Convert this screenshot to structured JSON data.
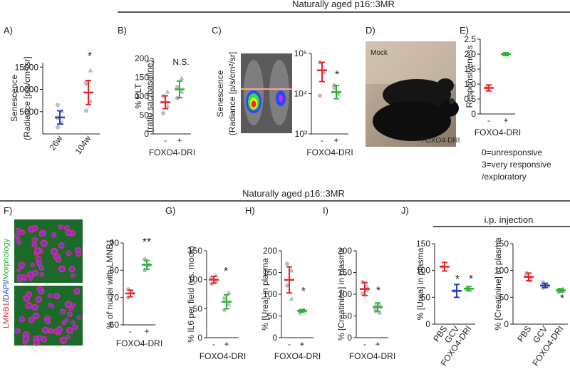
{
  "colors": {
    "red": "#e8242a",
    "blue": "#1f3fc6",
    "green": "#29b233",
    "grey": "#bdbdbd",
    "black": "#222222"
  },
  "headers": {
    "top": "Naturally aged p16::3MR",
    "middle": "Naturally aged p16::3MR",
    "ip": "i.p. injection"
  },
  "panel_letters": {
    "A": "A)",
    "B": "B)",
    "C": "C)",
    "D": "D)",
    "E": "E)",
    "F": "F)",
    "G": "G)",
    "H": "H)",
    "I": "I)",
    "J": "J)"
  },
  "annotations": {
    "star": "*",
    "double_star": "**",
    "ns": "N.S."
  },
  "photo_labels": {
    "mock": "Mock",
    "foxo4": "FOXO4-DRI"
  },
  "micro_label": {
    "lmnb1": "LMNB1",
    "dapi": "DAPI",
    "morph": "Morphology"
  },
  "legend_E": [
    "0=unresponsive",
    "3=very responsive",
    "/exploratory"
  ],
  "chart_data": [
    {
      "id": "A",
      "type": "scatter",
      "title": "",
      "ylabel": [
        "Senescence",
        "(Radiance [p/s/cm²/sr]"
      ],
      "xlabel": "",
      "categories": [
        "26w",
        "104w"
      ],
      "ylim": [
        0,
        16000
      ],
      "ticks": [
        5000,
        10000,
        15000
      ],
      "series": [
        {
          "values": [
            3700,
            9300
          ]
        }
      ],
      "errors": [
        1500,
        2700
      ],
      "raw": [
        [
          1500,
          2500,
          3600,
          5200,
          6500
        ],
        [
          5200,
          7400,
          11600,
          14300,
          11300
        ]
      ]
    },
    {
      "id": "B",
      "type": "scatter",
      "ylabel": [
        "% PLT",
        "(ratio sac/baseline)"
      ],
      "xlabel": "FOXO4-DRI",
      "categories": [
        "-",
        "+"
      ],
      "ylim": [
        0,
        200
      ],
      "ticks": [
        0,
        50,
        100,
        150,
        200
      ],
      "series": [
        {
          "values": [
            84,
            118
          ]
        }
      ],
      "errors": [
        17,
        22
      ],
      "raw": [
        [
          55,
          75,
          100,
          112
        ],
        [
          95,
          112,
          124,
          148
        ]
      ]
    },
    {
      "id": "C",
      "type": "scatter",
      "ylabel": [
        "Senescence",
        "(Radiance [p/s/cm²/sr]"
      ],
      "xlabel": "FOXO4-DRI",
      "categories": [
        "-",
        "+"
      ],
      "log": true,
      "ylim": [
        1000,
        100000
      ],
      "tick_labels": [
        "10³",
        "10⁴",
        "10⁵"
      ],
      "series": [
        {
          "values": [
            38000,
            11000
          ]
        }
      ],
      "errors_log": [
        [
          20000,
          60000
        ],
        [
          7500,
          16000
        ]
      ],
      "raw": [
        [
          60000,
          35000,
          9000
        ],
        [
          16000,
          10000,
          14000
        ]
      ]
    },
    {
      "id": "E",
      "type": "scatter",
      "ylabel": [
        "Responsiveness"
      ],
      "xlabel": "FOXO4-DRI",
      "categories": [
        "-",
        "+"
      ],
      "ylim": [
        0,
        2.5
      ],
      "ticks": [
        0,
        0.5,
        1.0,
        1.5,
        2.0,
        2.5
      ],
      "tick_labels": [
        "0",
        "0.5",
        "1.0",
        "1.5",
        "2.0",
        "2.5"
      ],
      "series": [
        {
          "values": [
            0.87,
            2.0
          ]
        }
      ],
      "errors": [
        0.1,
        0.05
      ],
      "raw": [
        [
          0.87
        ],
        [
          2.0
        ]
      ]
    },
    {
      "id": "F",
      "type": "scatter",
      "ylabel": [
        "% of nuclei with LMNB1"
      ],
      "xlabel": "FOXO4-DRI",
      "categories": [
        "-",
        "+"
      ],
      "ylim": [
        60,
        90
      ],
      "ticks": [
        60,
        70,
        80,
        90
      ],
      "series": [
        {
          "values": [
            71.5,
            82
          ]
        }
      ],
      "errors": [
        1.2,
        1.6
      ],
      "raw": [
        [
          70,
          72,
          73
        ],
        [
          80,
          82,
          84
        ]
      ]
    },
    {
      "id": "G",
      "type": "scatter",
      "ylabel": [
        "% IL6 per field (vs. mock)"
      ],
      "xlabel": "FOXO4-DRI",
      "categories": [
        "-",
        "+"
      ],
      "ylim": [
        0,
        150
      ],
      "ticks": [
        0,
        50,
        100,
        150
      ],
      "series": [
        {
          "values": [
            100,
            62
          ]
        }
      ],
      "errors": [
        6,
        12
      ],
      "raw": [
        [
          93,
          98,
          103,
          108
        ],
        [
          48,
          58,
          68,
          78
        ]
      ]
    },
    {
      "id": "H",
      "type": "scatter",
      "ylabel": [
        "% [Urea] in plasma"
      ],
      "xlabel": "FOXO4-DRI",
      "categories": [
        "-",
        "+"
      ],
      "ylim": [
        0,
        200
      ],
      "ticks": [
        0,
        50,
        100,
        150,
        200
      ],
      "series": [
        {
          "values": [
            133,
            62
          ]
        }
      ],
      "errors": [
        30,
        3
      ],
      "raw": [
        [
          170,
          155,
          120,
          90
        ],
        [
          60,
          64,
          57
        ]
      ]
    },
    {
      "id": "I",
      "type": "scatter",
      "ylabel": [
        "% [Creatinine] in plasma"
      ],
      "xlabel": "FOXO4-DRI",
      "categories": [
        "-",
        "+"
      ],
      "ylim": [
        0,
        200
      ],
      "ticks": [
        0,
        50,
        100,
        150,
        200
      ],
      "series": [
        {
          "values": [
            112,
            70
          ]
        }
      ],
      "errors": [
        15,
        10
      ],
      "raw": [
        [
          128,
          110,
          102,
          118
        ],
        [
          62,
          76,
          72,
          58
        ]
      ]
    },
    {
      "id": "J1",
      "type": "scatter",
      "ylabel": [
        "% [Urea] in plasma"
      ],
      "xlabel": "",
      "categories": [
        "PBS",
        "GCV",
        "FOXO4-DRI"
      ],
      "ylim": [
        0,
        150
      ],
      "ticks": [
        0,
        50,
        100,
        150
      ],
      "series": [
        {
          "values": [
            107,
            62,
            66
          ]
        }
      ],
      "errors": [
        8,
        12,
        4
      ],
      "raw": [
        [
          107
        ],
        [
          62
        ],
        [
          66
        ]
      ]
    },
    {
      "id": "J2",
      "type": "scatter",
      "ylabel": [
        "% [Creatinine] in plasma"
      ],
      "xlabel": "",
      "categories": [
        "PBS",
        "GCV",
        "FOXO4-DRI"
      ],
      "ylim": [
        0,
        150
      ],
      "ticks": [
        0,
        50,
        100,
        150
      ],
      "series": [
        {
          "values": [
            88,
            72,
            63
          ]
        }
      ],
      "errors": [
        7,
        4,
        3
      ],
      "raw": [
        [
          95,
          82,
          92,
          86
        ],
        [
          68,
          74,
          78,
          72
        ],
        [
          60,
          66,
          64,
          62
        ]
      ]
    }
  ]
}
